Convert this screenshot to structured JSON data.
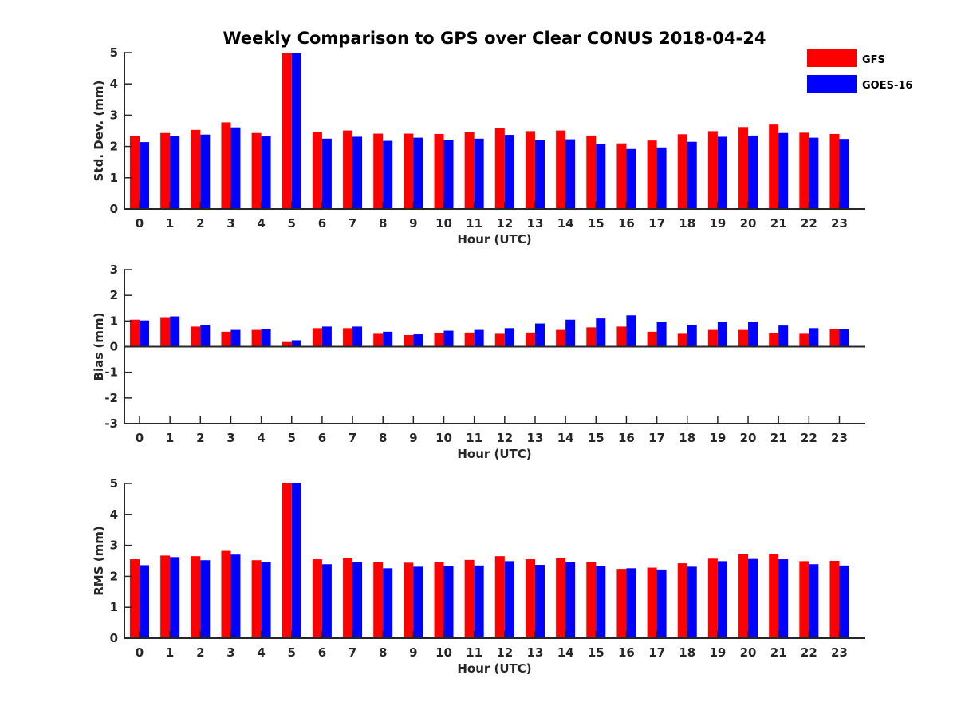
{
  "title": "Weekly Comparison to GPS over Clear CONUS 2018-04-24",
  "legend": {
    "placement": "top-right",
    "entries": [
      {
        "name": "GFS",
        "color": "#ff0000"
      },
      {
        "name": "GOES-16",
        "color": "#0000ff"
      }
    ]
  },
  "chart_data": [
    {
      "type": "bar",
      "xlabel": "Hour (UTC)",
      "ylabel": "Std. Dev. (mm)",
      "ylim": [
        0,
        5
      ],
      "yticks": [
        0,
        1,
        2,
        3,
        4,
        5
      ],
      "grid": false,
      "categories": [
        "0",
        "1",
        "2",
        "3",
        "4",
        "5",
        "6",
        "7",
        "8",
        "9",
        "10",
        "11",
        "12",
        "13",
        "14",
        "15",
        "16",
        "17",
        "18",
        "19",
        "20",
        "21",
        "22",
        "23"
      ],
      "series": [
        {
          "name": "GFS",
          "color": "#ff0000",
          "values": [
            2.33,
            2.43,
            2.53,
            2.77,
            2.43,
            5.0,
            2.46,
            2.51,
            2.41,
            2.41,
            2.4,
            2.46,
            2.6,
            2.49,
            2.51,
            2.35,
            2.1,
            2.19,
            2.39,
            2.49,
            2.62,
            2.7,
            2.44,
            2.4
          ]
        },
        {
          "name": "GOES-16",
          "color": "#0000ff",
          "values": [
            2.14,
            2.34,
            2.38,
            2.61,
            2.32,
            5.0,
            2.25,
            2.31,
            2.18,
            2.28,
            2.22,
            2.25,
            2.37,
            2.2,
            2.23,
            2.07,
            1.92,
            1.97,
            2.15,
            2.31,
            2.35,
            2.43,
            2.28,
            2.24
          ]
        }
      ]
    },
    {
      "type": "bar",
      "xlabel": "Hour (UTC)",
      "ylabel": "Bias (mm)",
      "ylim": [
        -3,
        3
      ],
      "yticks": [
        -3,
        -2,
        -1,
        0,
        1,
        2,
        3
      ],
      "grid": false,
      "categories": [
        "0",
        "1",
        "2",
        "3",
        "4",
        "5",
        "6",
        "7",
        "8",
        "9",
        "10",
        "11",
        "12",
        "13",
        "14",
        "15",
        "16",
        "17",
        "18",
        "19",
        "20",
        "21",
        "22",
        "23"
      ],
      "series": [
        {
          "name": "GFS",
          "color": "#ff0000",
          "values": [
            1.05,
            1.15,
            0.78,
            0.58,
            0.65,
            0.18,
            0.72,
            0.72,
            0.5,
            0.45,
            0.52,
            0.55,
            0.5,
            0.55,
            0.65,
            0.75,
            0.78,
            0.58,
            0.5,
            0.65,
            0.65,
            0.52,
            0.5,
            0.68
          ]
        },
        {
          "name": "GOES-16",
          "color": "#0000ff",
          "values": [
            1.02,
            1.18,
            0.85,
            0.65,
            0.7,
            0.25,
            0.78,
            0.78,
            0.58,
            0.48,
            0.62,
            0.65,
            0.72,
            0.9,
            1.05,
            1.1,
            1.22,
            0.98,
            0.85,
            0.97,
            0.97,
            0.82,
            0.72,
            0.68
          ]
        }
      ]
    },
    {
      "type": "bar",
      "xlabel": "Hour (UTC)",
      "ylabel": "RMS (mm)",
      "ylim": [
        0,
        5
      ],
      "yticks": [
        0,
        1,
        2,
        3,
        4,
        5
      ],
      "grid": false,
      "categories": [
        "0",
        "1",
        "2",
        "3",
        "4",
        "5",
        "6",
        "7",
        "8",
        "9",
        "10",
        "11",
        "12",
        "13",
        "14",
        "15",
        "16",
        "17",
        "18",
        "19",
        "20",
        "21",
        "22",
        "23"
      ],
      "series": [
        {
          "name": "GFS",
          "color": "#ff0000",
          "values": [
            2.55,
            2.67,
            2.65,
            2.82,
            2.52,
            5.0,
            2.55,
            2.6,
            2.46,
            2.44,
            2.46,
            2.53,
            2.65,
            2.55,
            2.58,
            2.46,
            2.24,
            2.28,
            2.42,
            2.57,
            2.71,
            2.73,
            2.49,
            2.5
          ]
        },
        {
          "name": "GOES-16",
          "color": "#0000ff",
          "values": [
            2.36,
            2.62,
            2.52,
            2.7,
            2.45,
            5.0,
            2.39,
            2.45,
            2.26,
            2.31,
            2.32,
            2.35,
            2.49,
            2.37,
            2.45,
            2.33,
            2.26,
            2.22,
            2.31,
            2.49,
            2.56,
            2.55,
            2.39,
            2.35
          ]
        }
      ]
    }
  ]
}
